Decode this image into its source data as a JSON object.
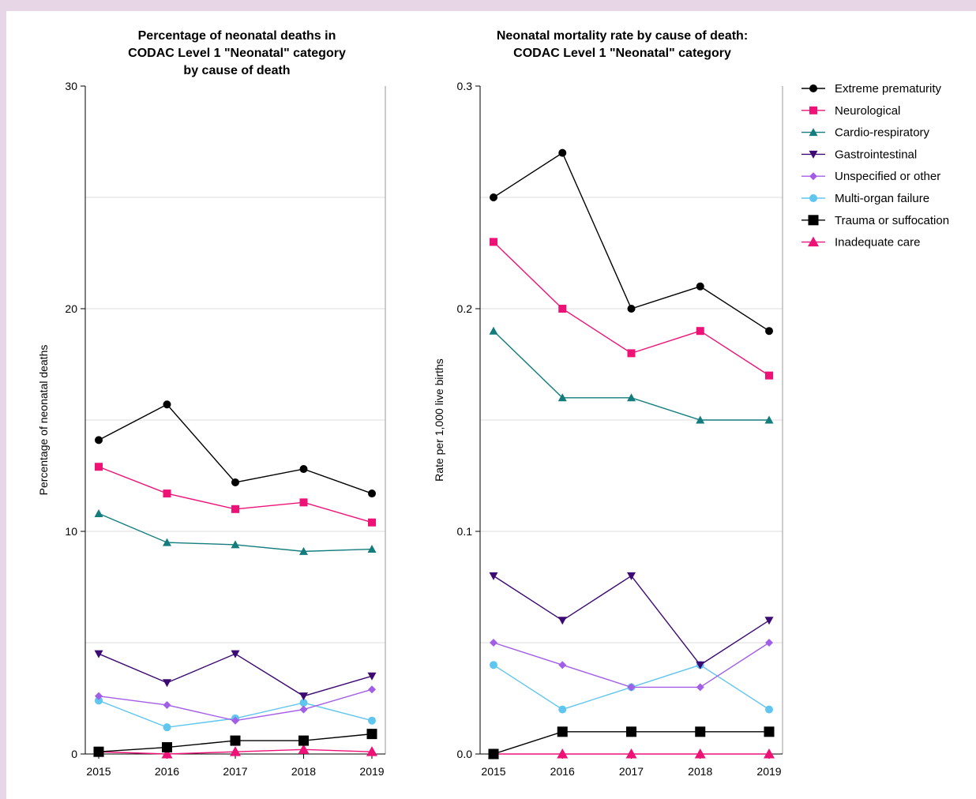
{
  "chart_data": [
    {
      "type": "line",
      "title_lines": [
        "Percentage of neonatal deaths in",
        "CODAC Level 1 \"Neonatal\" category",
        "by cause of death"
      ],
      "xlabel": "",
      "ylabel": "Percentage of neonatal deaths",
      "x": [
        2015,
        2016,
        2017,
        2018,
        2019
      ],
      "x_tick_labels": [
        "2015",
        "2016",
        "2017",
        "2018",
        "2019"
      ],
      "ylim": [
        0,
        30
      ],
      "y_ticks": [
        0,
        10,
        20,
        30
      ],
      "y_tick_labels": [
        "0",
        "10",
        "20",
        "30"
      ],
      "grid": "horizontal",
      "series": [
        {
          "name": "Extreme prematurity",
          "values": [
            14.1,
            15.7,
            12.2,
            12.8,
            11.7
          ]
        },
        {
          "name": "Neurological",
          "values": [
            12.9,
            11.7,
            11.0,
            11.3,
            10.4
          ]
        },
        {
          "name": "Cardio-respiratory",
          "values": [
            10.8,
            9.5,
            9.4,
            9.1,
            9.2
          ]
        },
        {
          "name": "Gastrointestinal",
          "values": [
            4.5,
            3.2,
            4.5,
            2.6,
            3.5
          ]
        },
        {
          "name": "Unspecified or other",
          "values": [
            2.6,
            2.2,
            1.5,
            2.0,
            2.9
          ]
        },
        {
          "name": "Multi-organ failure",
          "values": [
            2.4,
            1.2,
            1.6,
            2.3,
            1.5
          ]
        },
        {
          "name": "Trauma or suffocation",
          "values": [
            0.1,
            0.3,
            0.6,
            0.6,
            0.9
          ]
        },
        {
          "name": "Inadequate care",
          "values": [
            0.1,
            0.0,
            0.1,
            0.2,
            0.1
          ]
        }
      ]
    },
    {
      "type": "line",
      "title_lines": [
        "Neonatal mortality rate by cause of death:",
        "CODAC Level 1 \"Neonatal\" category"
      ],
      "xlabel": "",
      "ylabel": "Rate per 1,000 live births",
      "x": [
        2015,
        2016,
        2017,
        2018,
        2019
      ],
      "x_tick_labels": [
        "2015",
        "2016",
        "2017",
        "2018",
        "2019"
      ],
      "ylim": [
        0,
        0.3
      ],
      "y_ticks": [
        0,
        0.1,
        0.2,
        0.3
      ],
      "y_tick_labels": [
        "0.0",
        "0.1",
        "0.2",
        "0.3"
      ],
      "grid": "horizontal",
      "series": [
        {
          "name": "Extreme prematurity",
          "values": [
            0.25,
            0.27,
            0.2,
            0.21,
            0.19
          ]
        },
        {
          "name": "Neurological",
          "values": [
            0.23,
            0.2,
            0.18,
            0.19,
            0.17
          ]
        },
        {
          "name": "Cardio-respiratory",
          "values": [
            0.19,
            0.16,
            0.16,
            0.15,
            0.15
          ]
        },
        {
          "name": "Gastrointestinal",
          "values": [
            0.08,
            0.06,
            0.08,
            0.04,
            0.06
          ]
        },
        {
          "name": "Unspecified or other",
          "values": [
            0.05,
            0.04,
            0.03,
            0.03,
            0.05
          ]
        },
        {
          "name": "Multi-organ failure",
          "values": [
            0.04,
            0.02,
            0.03,
            0.04,
            0.02
          ]
        },
        {
          "name": "Trauma or suffocation",
          "values": [
            0.0,
            0.01,
            0.01,
            0.01,
            0.01
          ]
        },
        {
          "name": "Inadequate care",
          "values": [
            0.0,
            0.0,
            0.0,
            0.0,
            0.0
          ]
        }
      ]
    }
  ],
  "legend": {
    "placement": "right",
    "items": [
      {
        "label": "Extreme prematurity",
        "color": "#000000",
        "marker": "circle"
      },
      {
        "label": "Neurological",
        "color": "#ee1277",
        "marker": "square"
      },
      {
        "label": "Cardio-respiratory",
        "color": "#137d7d",
        "marker": "triangle-up"
      },
      {
        "label": "Gastrointestinal",
        "color": "#3d0a73",
        "marker": "triangle-down"
      },
      {
        "label": "Unspecified or other",
        "color": "#a35ee8",
        "marker": "diamond"
      },
      {
        "label": "Multi-organ failure",
        "color": "#60c6ef",
        "marker": "circle"
      },
      {
        "label": "Trauma or suffocation",
        "color": "#000000",
        "marker": "square-large"
      },
      {
        "label": "Inadequate care",
        "color": "#ee1277",
        "marker": "triangle-up-large"
      }
    ]
  }
}
